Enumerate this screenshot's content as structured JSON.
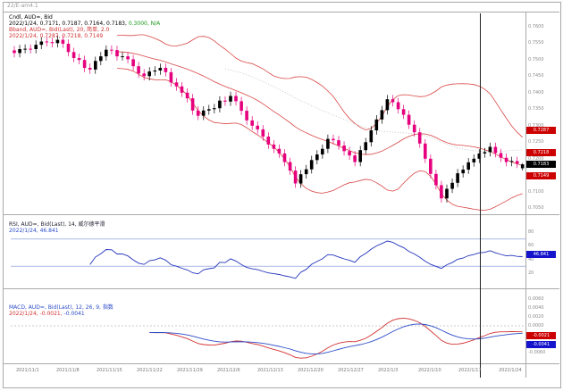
{
  "window": {
    "watermark": "22/E-am4.1"
  },
  "colors": {
    "candle_up": "#000000",
    "candle_down": "#e6007e",
    "bband": "#d94545",
    "rsi_line": "#2233bb",
    "rsi_level": "#7a8fd4",
    "macd_line": "#d23030",
    "macd_signal": "#2a4bc8",
    "dotted_ma": "#bdbdbd",
    "crosshair": "#222222",
    "marker_red_bg": "#cc0000",
    "marker_black_bg": "#000000",
    "marker_blue_bg": "#1414cc"
  },
  "main_pane": {
    "legend": {
      "line1": "Cndl, AUD=, Bid",
      "line2_ohlc": "2022/1/24, 0.7171, 0.7187, 0.7164, 0.7183, ",
      "line2_extra": "0.3000, N/A",
      "line3": "Bband, AUD=, Bid(Last), 20, 简单, 2.0",
      "line4": "2022/1/24, 0.7287, 0.7218, 0.7149"
    },
    "axis_ticks": [
      "0.7600",
      "0.7550",
      "0.7500",
      "0.7450",
      "0.7400",
      "0.7350",
      "0.7300",
      "0.7250",
      "0.7200",
      "0.7150",
      "0.7100",
      "0.7050"
    ]
  },
  "rsi_pane": {
    "legend": {
      "line1": "RSI, AUD=, Bid(Last), 14, 威尔德平滑",
      "line2": "2022/1/24, 46.841"
    },
    "axis_ticks": [
      "80",
      "60",
      "40",
      "20"
    ],
    "levels": [
      70,
      30
    ]
  },
  "macd_pane": {
    "legend": {
      "line1": "MACD, AUD=, Bid(Last), 12, 26, 9, 指数",
      "line2_red": "2022/1/24, -0.0021, ",
      "line2_blue": "-0.0041"
    },
    "axis_ticks": [
      "0.0060",
      "0.0040",
      "0.0020",
      "0.0000",
      "-0.0020",
      "-0.0040",
      "-0.0060"
    ]
  },
  "markers": [
    {
      "pane": "main",
      "value": 0.7287,
      "label": "0.7287",
      "bg": "#cc0000"
    },
    {
      "pane": "main",
      "value": 0.7218,
      "label": "0.7218",
      "bg": "#cc0000"
    },
    {
      "pane": "main",
      "value": 0.7183,
      "label": "0.7183",
      "bg": "#000000"
    },
    {
      "pane": "main",
      "value": 0.7149,
      "label": "0.7149",
      "bg": "#cc0000"
    },
    {
      "pane": "rsi",
      "value": 46.841,
      "label": "46.841",
      "bg": "#1414cc"
    },
    {
      "pane": "macd",
      "value": -0.0021,
      "label": "-0.0021",
      "bg": "#cc0000"
    },
    {
      "pane": "macd",
      "value": -0.0041,
      "label": "-0.0041",
      "bg": "#1414cc"
    }
  ],
  "time_axis": {
    "labels": [
      "2021/11/1",
      "2021/11/8",
      "2021/11/15",
      "2021/11/22",
      "2021/11/29",
      "2021/12/6",
      "2021/12/13",
      "2021/12/20",
      "2021/12/27",
      "2022/1/3",
      "2022/1/10",
      "2022/1/17",
      "2022/1/24"
    ]
  },
  "chart_data": {
    "type": "candlestick",
    "title": "Cndl, AUD=, Bid",
    "symbol": "AUD=",
    "legend_date": "2022/1/24",
    "x_labels": [
      "2021/11/1",
      "2021/11/8",
      "2021/11/15",
      "2021/11/22",
      "2021/11/29",
      "2021/12/6",
      "2021/12/13",
      "2021/12/20",
      "2021/12/27",
      "2022/1/3",
      "2022/1/10",
      "2022/1/17",
      "2022/1/24"
    ],
    "y_axis": {
      "main_range": [
        0.704,
        0.764
      ],
      "rsi_range": [
        0,
        100
      ],
      "macd_range": [
        -0.008,
        0.008
      ]
    },
    "series": {
      "candles_close": [
        0.752,
        0.7532,
        0.7533,
        0.7532,
        0.7545,
        0.7555,
        0.7553,
        0.755,
        0.756,
        0.7548,
        0.7523,
        0.7505,
        0.7499,
        0.7475,
        0.747,
        0.7496,
        0.751,
        0.753,
        0.7529,
        0.751,
        0.751,
        0.7501,
        0.748,
        0.7458,
        0.745,
        0.7464,
        0.7467,
        0.7475,
        0.7462,
        0.7431,
        0.7419,
        0.74,
        0.7383,
        0.7346,
        0.733,
        0.7346,
        0.735,
        0.7353,
        0.7376,
        0.7373,
        0.739,
        0.7374,
        0.7345,
        0.7316,
        0.73,
        0.7289,
        0.7267,
        0.7243,
        0.723,
        0.7216,
        0.719,
        0.7164,
        0.7125,
        0.7153,
        0.7168,
        0.7196,
        0.7213,
        0.723,
        0.726,
        0.7256,
        0.724,
        0.7223,
        0.721,
        0.719,
        0.7226,
        0.725,
        0.7286,
        0.7319,
        0.7347,
        0.738,
        0.7371,
        0.735,
        0.7333,
        0.7303,
        0.728,
        0.7246,
        0.72,
        0.7154,
        0.712,
        0.708,
        0.7109,
        0.7127,
        0.7156,
        0.7167,
        0.7189,
        0.72,
        0.7216,
        0.722,
        0.7236,
        0.7217,
        0.7203,
        0.719,
        0.7193,
        0.7185,
        0.7183
      ],
      "last_candle_ohlc": {
        "open": 0.7171,
        "high": 0.7187,
        "low": 0.7164,
        "close": 0.7183
      },
      "bollinger": {
        "period": 20,
        "stdev": 2,
        "type_label": "简单",
        "last_upper": 0.7287,
        "last_middle": 0.7218,
        "last_lower": 0.7149
      },
      "rsi": {
        "period": 14,
        "smoothing_label": "威尔德平滑",
        "last": 46.841
      },
      "macd": {
        "fast": 12,
        "slow": 26,
        "signal": 9,
        "ma_label": "指数",
        "last_macd": -0.0021,
        "last_signal": -0.0041
      }
    }
  }
}
